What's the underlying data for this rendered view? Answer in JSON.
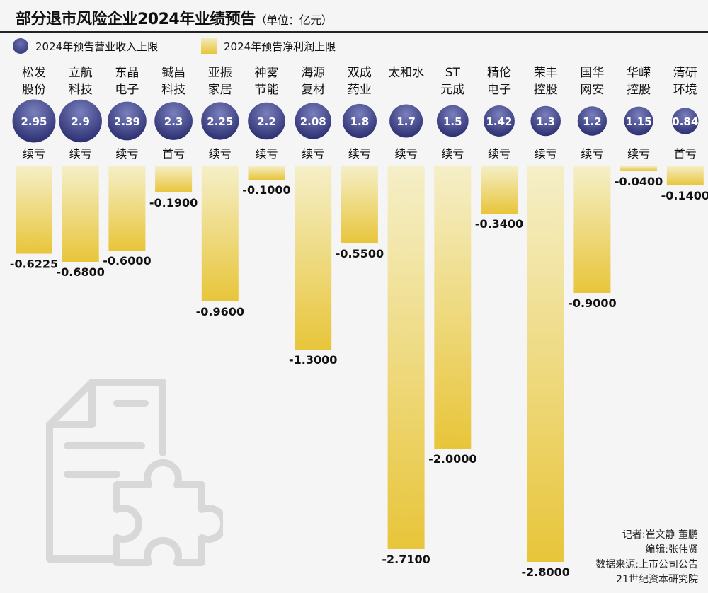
{
  "header": {
    "title": "部分退市风险企业2024年业绩预告",
    "unit": "（单位：亿元）"
  },
  "legend": {
    "revenue": "2024年预告营业收入上限",
    "profit": "2024年预告净利润上限"
  },
  "colors": {
    "circle_dark": "#262a6c",
    "circle_light": "#7a7fbd",
    "bar_top": "#f5efc8",
    "bar_bottom": "#e8c53a",
    "text": "#111111"
  },
  "chart_data": {
    "type": "bar",
    "title": "部分退市风险企业2024年业绩预告",
    "unit": "亿元",
    "companies": [
      {
        "name_line1": "松发",
        "name_line2": "股份",
        "revenue": 2.95,
        "revenue_label": "2.95",
        "status": "续亏",
        "profit": -0.6225,
        "profit_label": "-0.6225"
      },
      {
        "name_line1": "立航",
        "name_line2": "科技",
        "revenue": 2.9,
        "revenue_label": "2.9",
        "status": "续亏",
        "profit": -0.68,
        "profit_label": "-0.6800"
      },
      {
        "name_line1": "东晶",
        "name_line2": "电子",
        "revenue": 2.39,
        "revenue_label": "2.39",
        "status": "续亏",
        "profit": -0.6,
        "profit_label": "-0.6000"
      },
      {
        "name_line1": "铖昌",
        "name_line2": "科技",
        "revenue": 2.3,
        "revenue_label": "2.3",
        "status": "首亏",
        "profit": -0.19,
        "profit_label": "-0.1900"
      },
      {
        "name_line1": "亚振",
        "name_line2": "家居",
        "revenue": 2.25,
        "revenue_label": "2.25",
        "status": "续亏",
        "profit": -0.96,
        "profit_label": "-0.9600"
      },
      {
        "name_line1": "神雾",
        "name_line2": "节能",
        "revenue": 2.2,
        "revenue_label": "2.2",
        "status": "续亏",
        "profit": -0.1,
        "profit_label": "-0.1000"
      },
      {
        "name_line1": "海源",
        "name_line2": "复材",
        "revenue": 2.08,
        "revenue_label": "2.08",
        "status": "续亏",
        "profit": -1.3,
        "profit_label": "-1.3000"
      },
      {
        "name_line1": "双成",
        "name_line2": "药业",
        "revenue": 1.8,
        "revenue_label": "1.8",
        "status": "续亏",
        "profit": -0.55,
        "profit_label": "-0.5500"
      },
      {
        "name_line1": "太和水",
        "name_line2": "",
        "revenue": 1.7,
        "revenue_label": "1.7",
        "status": "续亏",
        "profit": -2.71,
        "profit_label": "-2.7100"
      },
      {
        "name_line1": "ST",
        "name_line2": "元成",
        "revenue": 1.5,
        "revenue_label": "1.5",
        "status": "续亏",
        "profit": -2.0,
        "profit_label": "-2.0000"
      },
      {
        "name_line1": "精伦",
        "name_line2": "电子",
        "revenue": 1.42,
        "revenue_label": "1.42",
        "status": "续亏",
        "profit": -0.34,
        "profit_label": "-0.3400"
      },
      {
        "name_line1": "荣丰",
        "name_line2": "控股",
        "revenue": 1.3,
        "revenue_label": "1.3",
        "status": "续亏",
        "profit": -2.8,
        "profit_label": "-2.8000"
      },
      {
        "name_line1": "国华",
        "name_line2": "网安",
        "revenue": 1.2,
        "revenue_label": "1.2",
        "status": "续亏",
        "profit": -0.9,
        "profit_label": "-0.9000"
      },
      {
        "name_line1": "华嵘",
        "name_line2": "控股",
        "revenue": 1.15,
        "revenue_label": "1.15",
        "status": "续亏",
        "profit": -0.04,
        "profit_label": "-0.0400"
      },
      {
        "name_line1": "清研",
        "name_line2": "环境",
        "revenue": 0.84,
        "revenue_label": "0.84",
        "status": "首亏",
        "profit": -0.14,
        "profit_label": "-0.1400"
      }
    ]
  },
  "credits": {
    "reporter": "记者:崔文静 董鹏",
    "editor": "编辑:张伟贤",
    "source1": "数据来源:上市公司公告",
    "source2": "21世纪资本研究院"
  }
}
